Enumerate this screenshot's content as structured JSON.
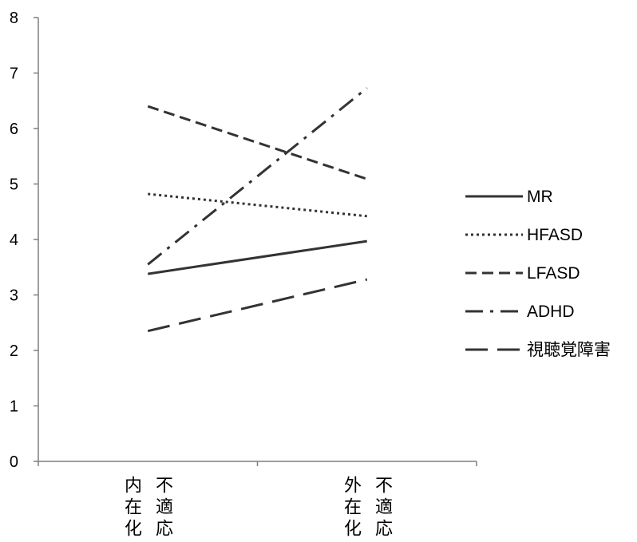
{
  "chart_data": {
    "type": "line",
    "categories": [
      "内在化不適応",
      "外在化不適応"
    ],
    "series": [
      {
        "name": "MR",
        "values": [
          3.38,
          3.97
        ],
        "line_style": "solid",
        "color": "#333333"
      },
      {
        "name": "HFASD",
        "values": [
          4.82,
          4.42
        ],
        "line_style": "dotted",
        "color": "#333333"
      },
      {
        "name": "LFASD",
        "values": [
          6.4,
          5.09
        ],
        "line_style": "dashed",
        "color": "#333333"
      },
      {
        "name": "ADHD",
        "values": [
          3.55,
          6.73
        ],
        "line_style": "dash-dot",
        "color": "#333333"
      },
      {
        "name": "視聴覚障害",
        "values": [
          2.35,
          3.28
        ],
        "line_style": "long-dash",
        "color": "#333333"
      }
    ],
    "ylim": [
      0,
      8
    ],
    "yticks": [
      0,
      1,
      2,
      3,
      4,
      5,
      6,
      7,
      8
    ],
    "grid": false,
    "legend": "right",
    "axis_color": "#7f7f7f"
  }
}
